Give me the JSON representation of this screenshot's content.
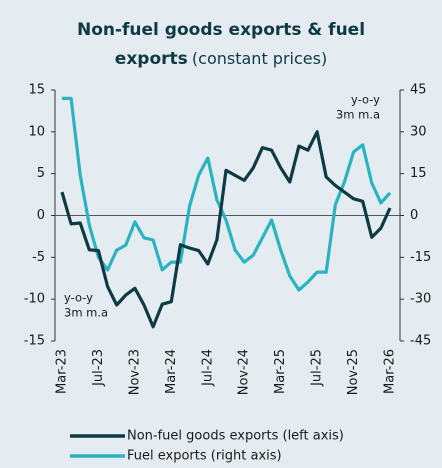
{
  "chart_data": {
    "type": "line",
    "title": [
      "Non-fuel goods exports & fuel",
      "exports"
    ],
    "subtitle": "(constant prices)",
    "categories": [
      "Mar-23",
      null,
      null,
      null,
      "Jul-23",
      null,
      null,
      null,
      "Nov-23",
      null,
      null,
      null,
      "Mar-24",
      null,
      null,
      null,
      "Jul-24",
      null,
      null,
      null,
      "Nov-24",
      null,
      null,
      null,
      "Mar-25",
      null,
      null,
      null,
      "Jul-25",
      null,
      null,
      null,
      "Nov-25",
      null,
      null,
      null,
      "Mar-26"
    ],
    "ylim": [
      -15,
      15
    ],
    "yticks": [
      -15,
      -10,
      -5,
      0,
      5,
      10,
      15
    ],
    "y2lim": [
      -45,
      45
    ],
    "y2ticks": [
      -45,
      -30,
      -15,
      0,
      15,
      30,
      45
    ],
    "annotations": [
      [
        "y-o-y",
        "3m m.a"
      ],
      [
        "y-o-y",
        "3m m.a"
      ]
    ],
    "series": [
      {
        "name": "Non-fuel goods exports (left axis)",
        "color": "#0e3a44",
        "values": [
          2.8,
          -1,
          -0.9,
          -4.1,
          -4.2,
          -8.5,
          -10.7,
          -9.5,
          -8.7,
          -10.7,
          -13.3,
          -10.6,
          -10.3,
          -3.5,
          -3.9,
          -4.2,
          -5.8,
          -2.9,
          5.4,
          4.8,
          4.2,
          5.7,
          8.1,
          7.8,
          5.7,
          4.0,
          8.3,
          7.8,
          10,
          4.6,
          3.6,
          2.8,
          2.0,
          1.7,
          -2.6,
          -1.5,
          0.9
        ]
      },
      {
        "name": "Fuel exports (right axis)",
        "color": "#2ab3c0",
        "axis": "y2",
        "values": [
          42,
          42,
          14.5,
          -3.4,
          -15,
          -19.5,
          -12.4,
          -10.6,
          -2.3,
          -8,
          -8.8,
          -19.5,
          -16.7,
          -16.7,
          3.4,
          14.5,
          20.6,
          5.6,
          -1.6,
          -12.4,
          -16.7,
          -14.2,
          -8,
          -1.6,
          -12.4,
          -21.7,
          -26.7,
          -23.8,
          -20.3,
          -20.3,
          3.8,
          12,
          22.8,
          25.3,
          11.6,
          4.5,
          8.1
        ]
      }
    ]
  }
}
